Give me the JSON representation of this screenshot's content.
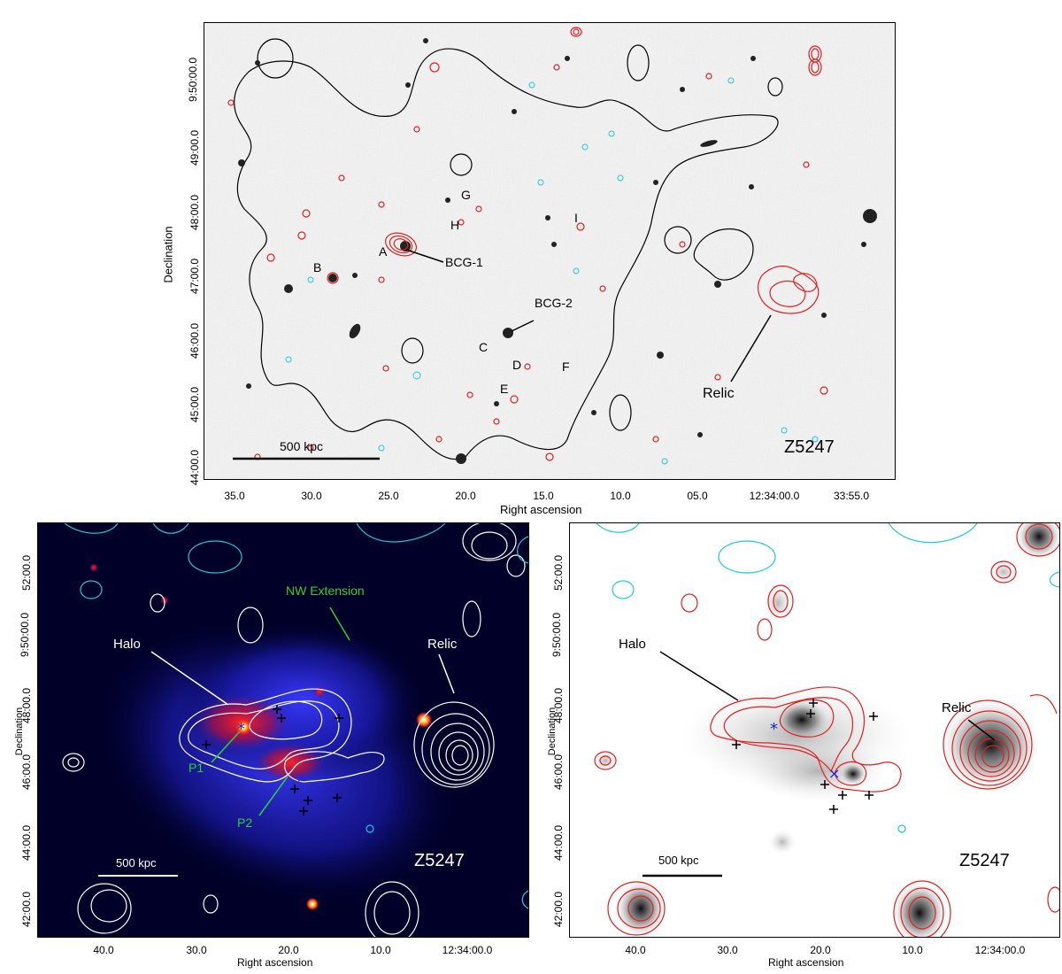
{
  "top_panel": {
    "name": "Z5247",
    "xlabel": "Right ascension",
    "ylabel": "Declination",
    "ra_ticks": [
      "35.0",
      "30.0",
      "25.0",
      "20.0",
      "15.0",
      "10.0",
      "05.0",
      "12:34:00.0",
      "33:55.0"
    ],
    "dec_ticks": [
      "9:50:00.0",
      "49:00.0",
      "48:00.0",
      "47:00.0",
      "46:00.0",
      "45:00.0",
      "44:00.0"
    ],
    "scale_bar": "500 kpc",
    "labels": {
      "bcg1": "BCG-1",
      "bcg2": "BCG-2",
      "relic": "Relic",
      "A": "A",
      "B": "B",
      "C": "C",
      "D": "D",
      "E": "E",
      "F": "F",
      "G": "G",
      "H": "H",
      "I": "I"
    }
  },
  "bottom_left_panel": {
    "name": "Z5247",
    "xlabel": "Right ascension",
    "ylabel": "Declination",
    "ra_ticks": [
      "40.0",
      "30.0",
      "20.0",
      "10.0",
      "12:34:00.0"
    ],
    "dec_ticks": [
      "52:00.0",
      "9:50:00.0",
      "48:00.0",
      "46:00.0",
      "44:00.0",
      "42:00.0"
    ],
    "scale_bar": "500 kpc",
    "labels": {
      "halo": "Halo",
      "relic": "Relic",
      "nw": "NW Extension",
      "p1": "P1",
      "p2": "P2"
    }
  },
  "bottom_right_panel": {
    "name": "Z5247",
    "xlabel": "Right ascension",
    "ylabel": "Declination",
    "ra_ticks": [
      "40.0",
      "30.0",
      "20.0",
      "10.0",
      "12:34:00.0"
    ],
    "dec_ticks": [
      "52:00.0",
      "9:50:00.0",
      "48:00.0",
      "46:00.0",
      "44:00.0",
      "42:00.0"
    ],
    "scale_bar": "500 kpc",
    "labels": {
      "halo": "Halo",
      "relic": "Relic"
    }
  },
  "colors": {
    "radio_contour": "#e02020",
    "negative_contour": "#20c8d8",
    "xray_contour": "#000000",
    "annotation_green": "#30d030",
    "marker_blue": "#2020e0"
  }
}
